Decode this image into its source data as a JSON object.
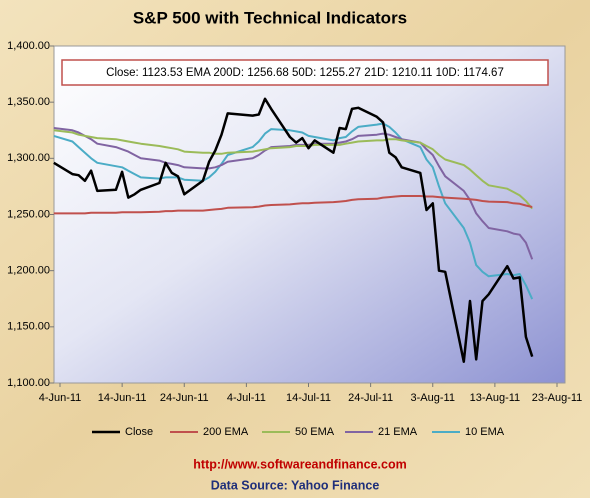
{
  "chart_data": {
    "type": "line",
    "title": "S&P 500 with Technical Indicators",
    "annotation": "Close: 1123.53   EMA  200D: 1256.68   50D: 1255.27   21D: 1210.11   10D: 1174.67",
    "footer_url": "http://www.softwareandfinance.com",
    "footer_source": "Data Source: Yahoo Finance",
    "x": [
      "2011-06-03",
      "2011-06-06",
      "2011-06-07",
      "2011-06-08",
      "2011-06-09",
      "2011-06-10",
      "2011-06-13",
      "2011-06-14",
      "2011-06-15",
      "2011-06-16",
      "2011-06-17",
      "2011-06-20",
      "2011-06-21",
      "2011-06-22",
      "2011-06-23",
      "2011-06-24",
      "2011-06-27",
      "2011-06-28",
      "2011-06-29",
      "2011-06-30",
      "2011-07-01",
      "2011-07-05",
      "2011-07-06",
      "2011-07-07",
      "2011-07-08",
      "2011-07-11",
      "2011-07-12",
      "2011-07-13",
      "2011-07-14",
      "2011-07-15",
      "2011-07-18",
      "2011-07-19",
      "2011-07-20",
      "2011-07-21",
      "2011-07-22",
      "2011-07-25",
      "2011-07-26",
      "2011-07-27",
      "2011-07-28",
      "2011-07-29",
      "2011-08-01",
      "2011-08-02",
      "2011-08-03",
      "2011-08-04",
      "2011-08-05",
      "2011-08-08",
      "2011-08-09",
      "2011-08-10",
      "2011-08-11",
      "2011-08-12",
      "2011-08-15",
      "2011-08-16",
      "2011-08-17",
      "2011-08-18",
      "2011-08-19"
    ],
    "series": [
      {
        "name": "Close",
        "color": "#000000",
        "values": [
          1296,
          1286,
          1285,
          1280,
          1289,
          1271,
          1272,
          1288,
          1265,
          1268,
          1272,
          1278,
          1296,
          1287,
          1284,
          1268,
          1280,
          1297,
          1307,
          1321,
          1340,
          1338,
          1339,
          1353,
          1344,
          1319,
          1314,
          1318,
          1309,
          1316,
          1305,
          1327,
          1326,
          1344,
          1345,
          1337,
          1332,
          1305,
          1301,
          1292,
          1287,
          1254,
          1260,
          1200,
          1199,
          1119,
          1173,
          1121,
          1173,
          1179,
          1204,
          1193,
          1194,
          1141,
          1123.53
        ]
      },
      {
        "name": "200 EMA",
        "color": "#c0504d",
        "values": [
          1251,
          1251,
          1251,
          1251,
          1251.5,
          1251.5,
          1251.5,
          1252,
          1252,
          1252,
          1252,
          1252.5,
          1253,
          1253,
          1253.5,
          1253.5,
          1253.5,
          1254,
          1254.5,
          1255,
          1256,
          1256.5,
          1257,
          1258,
          1258.5,
          1259,
          1259.5,
          1260,
          1260,
          1260.5,
          1261,
          1261.5,
          1262,
          1263,
          1263.5,
          1264,
          1265,
          1265.5,
          1266,
          1266.5,
          1266.5,
          1266,
          1266,
          1265.5,
          1265,
          1264,
          1263.5,
          1263,
          1262,
          1261.5,
          1261,
          1260,
          1259.5,
          1258,
          1256.68
        ]
      },
      {
        "name": "50 EMA",
        "color": "#9bbb59",
        "values": [
          1325,
          1323,
          1321,
          1320,
          1319,
          1318,
          1317,
          1316,
          1315,
          1314,
          1313,
          1311,
          1310,
          1309,
          1308,
          1306,
          1305,
          1305,
          1304,
          1304,
          1305,
          1306,
          1307,
          1308,
          1309,
          1310,
          1311,
          1311,
          1311,
          1312,
          1312,
          1312,
          1313,
          1314,
          1315,
          1316,
          1316,
          1317,
          1317,
          1316,
          1314,
          1311,
          1308,
          1303,
          1299,
          1294,
          1290,
          1285,
          1280,
          1276,
          1273,
          1270,
          1267,
          1262,
          1255.27
        ]
      },
      {
        "name": "21 EMA",
        "color": "#8064a2",
        "values": [
          1327,
          1325,
          1323,
          1320,
          1317,
          1313,
          1310,
          1308,
          1306,
          1303,
          1300,
          1298,
          1296,
          1295,
          1294,
          1292,
          1291,
          1291,
          1292,
          1294,
          1297,
          1300,
          1303,
          1307,
          1310,
          1311,
          1312,
          1312,
          1312,
          1313,
          1313,
          1314,
          1315,
          1317,
          1320,
          1321,
          1322,
          1321,
          1319,
          1317,
          1314,
          1308,
          1303,
          1293,
          1284,
          1271,
          1263,
          1251,
          1244,
          1238,
          1235,
          1233,
          1232,
          1225,
          1210.11
        ]
      },
      {
        "name": "10 EMA",
        "color": "#4bacc6",
        "values": [
          1320,
          1315,
          1310,
          1305,
          1300,
          1296,
          1293,
          1292,
          1289,
          1286,
          1283,
          1282,
          1283,
          1283,
          1283,
          1281,
          1280,
          1283,
          1288,
          1295,
          1303,
          1310,
          1315,
          1322,
          1326,
          1325,
          1324,
          1323,
          1320,
          1319,
          1316,
          1318,
          1319,
          1324,
          1328,
          1330,
          1331,
          1328,
          1323,
          1317,
          1310,
          1299,
          1292,
          1275,
          1260,
          1238,
          1225,
          1205,
          1199,
          1195,
          1197,
          1196,
          1197,
          1187,
          1174.67
        ]
      }
    ],
    "xlim": [
      "2011-06-03",
      "2011-08-23"
    ],
    "xticks": [
      {
        "value": "2011-06-04",
        "label": "4-Jun-11"
      },
      {
        "value": "2011-06-14",
        "label": "14-Jun-11"
      },
      {
        "value": "2011-06-24",
        "label": "24-Jun-11"
      },
      {
        "value": "2011-07-04",
        "label": "4-Jul-11"
      },
      {
        "value": "2011-07-14",
        "label": "14-Jul-11"
      },
      {
        "value": "2011-07-24",
        "label": "24-Jul-11"
      },
      {
        "value": "2011-08-03",
        "label": "3-Aug-11"
      },
      {
        "value": "2011-08-13",
        "label": "13-Aug-11"
      },
      {
        "value": "2011-08-23",
        "label": "23-Aug-11"
      }
    ],
    "ylim": [
      1100,
      1400
    ],
    "yticks": [
      {
        "value": 1100,
        "label": "1,100.00"
      },
      {
        "value": 1150,
        "label": "1,150.00"
      },
      {
        "value": 1200,
        "label": "1,200.00"
      },
      {
        "value": 1250,
        "label": "1,250.00"
      },
      {
        "value": 1300,
        "label": "1,300.00"
      },
      {
        "value": 1350,
        "label": "1,350.00"
      },
      {
        "value": 1400,
        "label": "1,400.00"
      }
    ],
    "grid": false,
    "legend": "bottom"
  }
}
